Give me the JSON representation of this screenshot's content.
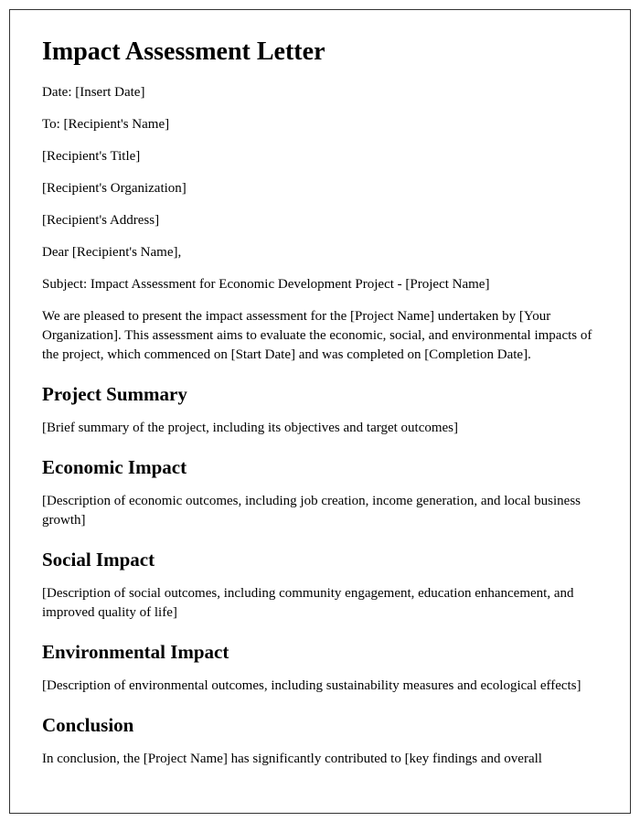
{
  "title": "Impact Assessment Letter",
  "header": {
    "date": "Date: [Insert Date]",
    "to": "To: [Recipient's Name]",
    "recipient_title": "[Recipient's Title]",
    "recipient_org": "[Recipient's Organization]",
    "recipient_address": "[Recipient's Address]",
    "salutation": "Dear [Recipient's Name],",
    "subject": "Subject: Impact Assessment for Economic Development Project - [Project Name]",
    "intro": "We are pleased to present the impact assessment for the [Project Name] undertaken by [Your Organization]. This assessment aims to evaluate the economic, social, and environmental impacts of the project, which commenced on [Start Date] and was completed on [Completion Date]."
  },
  "sections": {
    "project_summary": {
      "heading": "Project Summary",
      "body": "[Brief summary of the project, including its objectives and target outcomes]"
    },
    "economic_impact": {
      "heading": "Economic Impact",
      "body": "[Description of economic outcomes, including job creation, income generation, and local business growth]"
    },
    "social_impact": {
      "heading": "Social Impact",
      "body": "[Description of social outcomes, including community engagement, education enhancement, and improved quality of life]"
    },
    "environmental_impact": {
      "heading": "Environmental Impact",
      "body": "[Description of environmental outcomes, including sustainability measures and ecological effects]"
    },
    "conclusion": {
      "heading": "Conclusion",
      "body": "In conclusion, the [Project Name] has significantly contributed to [key findings and overall"
    }
  },
  "styling": {
    "font_family": "Times New Roman",
    "h1_fontsize": 28,
    "h2_fontsize": 21,
    "body_fontsize": 15,
    "text_color": "#000000",
    "background_color": "#ffffff",
    "border_color": "#333333",
    "page_padding": 35,
    "page_margin": 10
  }
}
